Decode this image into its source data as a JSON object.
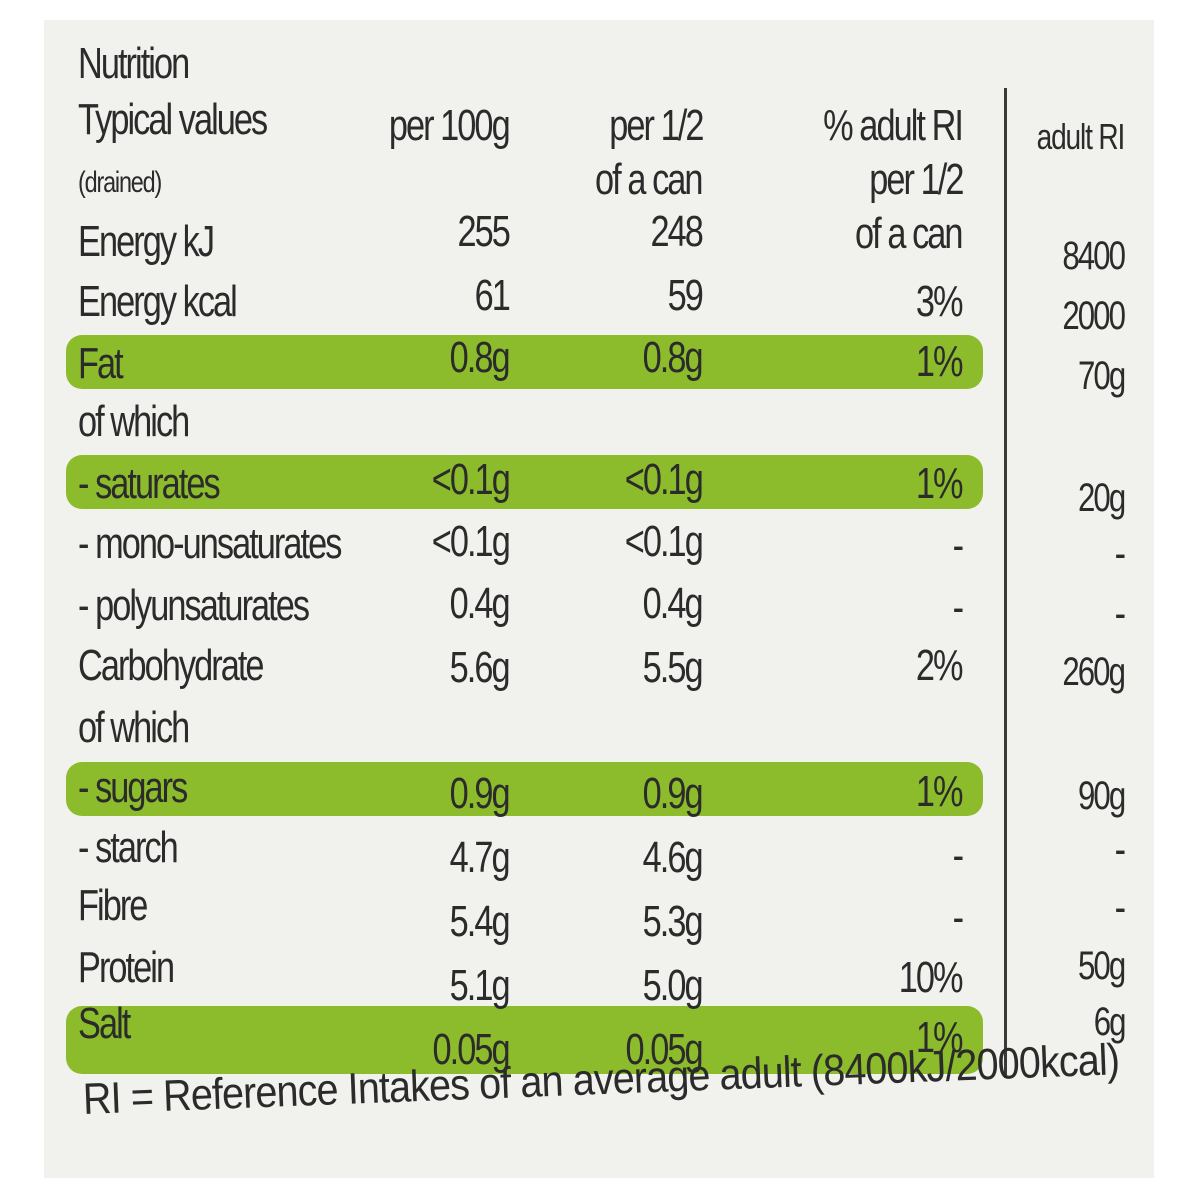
{
  "title": "Nutrition",
  "header": {
    "typical": "Typical values",
    "drained": "(drained)",
    "per100": "per 100g",
    "perhalf1": "per 1/2",
    "perhalf2": "of a can",
    "ri1": "% adult RI",
    "ri2": "per 1/2",
    "ri3": "of a can",
    "adult_ri": "adult RI"
  },
  "rows": {
    "energy_kj": {
      "label": "Energy kJ",
      "per100": "255",
      "perhalf": "248",
      "ri": "",
      "adult": "8400"
    },
    "energy_kcal": {
      "label": "Energy kcal",
      "per100": "61",
      "perhalf": "59",
      "ri": "3%",
      "adult": "2000"
    },
    "fat": {
      "label": "Fat",
      "per100": "0.8g",
      "perhalf": "0.8g",
      "ri": "1%",
      "adult": "70g"
    },
    "of_which_1": {
      "label": "of which"
    },
    "saturates": {
      "label": "- saturates",
      "per100": "<0.1g",
      "perhalf": "<0.1g",
      "ri": "1%",
      "adult": "20g"
    },
    "mono": {
      "label": "- mono-unsaturates",
      "per100": "<0.1g",
      "perhalf": "<0.1g",
      "ri": "-",
      "adult": "-"
    },
    "poly": {
      "label": "- polyunsaturates",
      "per100": "0.4g",
      "perhalf": "0.4g",
      "ri": "-",
      "adult": "-"
    },
    "carbohydrate": {
      "label": "Carbohydrate",
      "per100": "5.6g",
      "perhalf": "5.5g",
      "ri": "2%",
      "adult": "260g"
    },
    "of_which_2": {
      "label": "of which"
    },
    "sugars": {
      "label": "- sugars",
      "per100": "0.9g",
      "perhalf": "0.9g",
      "ri": "1%",
      "adult": "90g"
    },
    "starch": {
      "label": "- starch",
      "per100": "4.7g",
      "perhalf": "4.6g",
      "ri": "-",
      "adult": "-"
    },
    "fibre": {
      "label": "Fibre",
      "per100": "5.4g",
      "perhalf": "5.3g",
      "ri": "-",
      "adult": "-"
    },
    "protein": {
      "label": "Protein",
      "per100": "5.1g",
      "perhalf": "5.0g",
      "ri": "10%",
      "adult": "50g"
    },
    "salt": {
      "label": "Salt",
      "per100": "0.05g",
      "perhalf": "0.05g",
      "ri": "1%",
      "adult": "6g"
    }
  },
  "footer": "RI = Reference Intakes of an average adult (8400kJ/2000kcal)",
  "colors": {
    "highlight": "#8cbc2c",
    "text": "#2b2b2b",
    "background": "#f1f2ee"
  }
}
